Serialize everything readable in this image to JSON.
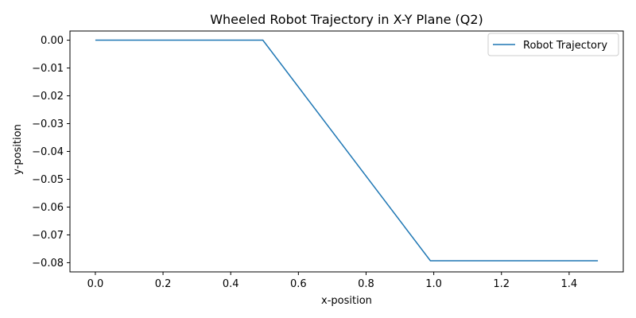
{
  "chart_data": {
    "type": "line",
    "title": "Wheeled Robot Trajectory in X-Y Plane (Q2)",
    "xlabel": "x-position",
    "ylabel": "y-position",
    "xlim": [
      -0.075,
      1.56
    ],
    "ylim": [
      -0.0833,
      0.0033
    ],
    "x_ticks": [
      0.0,
      0.2,
      0.4,
      0.6,
      0.8,
      1.0,
      1.2,
      1.4
    ],
    "x_tick_labels": [
      "0.0",
      "0.2",
      "0.4",
      "0.6",
      "0.8",
      "1.0",
      "1.2",
      "1.4"
    ],
    "y_ticks": [
      0.0,
      -0.01,
      -0.02,
      -0.03,
      -0.04,
      -0.05,
      -0.06,
      -0.07,
      -0.08
    ],
    "y_tick_labels": [
      "0.00",
      "−0.01",
      "−0.02",
      "−0.03",
      "−0.04",
      "−0.05",
      "−0.06",
      "−0.07",
      "−0.08"
    ],
    "grid": false,
    "legend_position": "top-right",
    "series": [
      {
        "name": "Robot Trajectory",
        "color": "#1f77b4",
        "x": [
          0.0,
          0.495,
          0.99,
          1.485
        ],
        "y": [
          0.0,
          0.0,
          -0.0793,
          -0.0793
        ]
      }
    ]
  }
}
